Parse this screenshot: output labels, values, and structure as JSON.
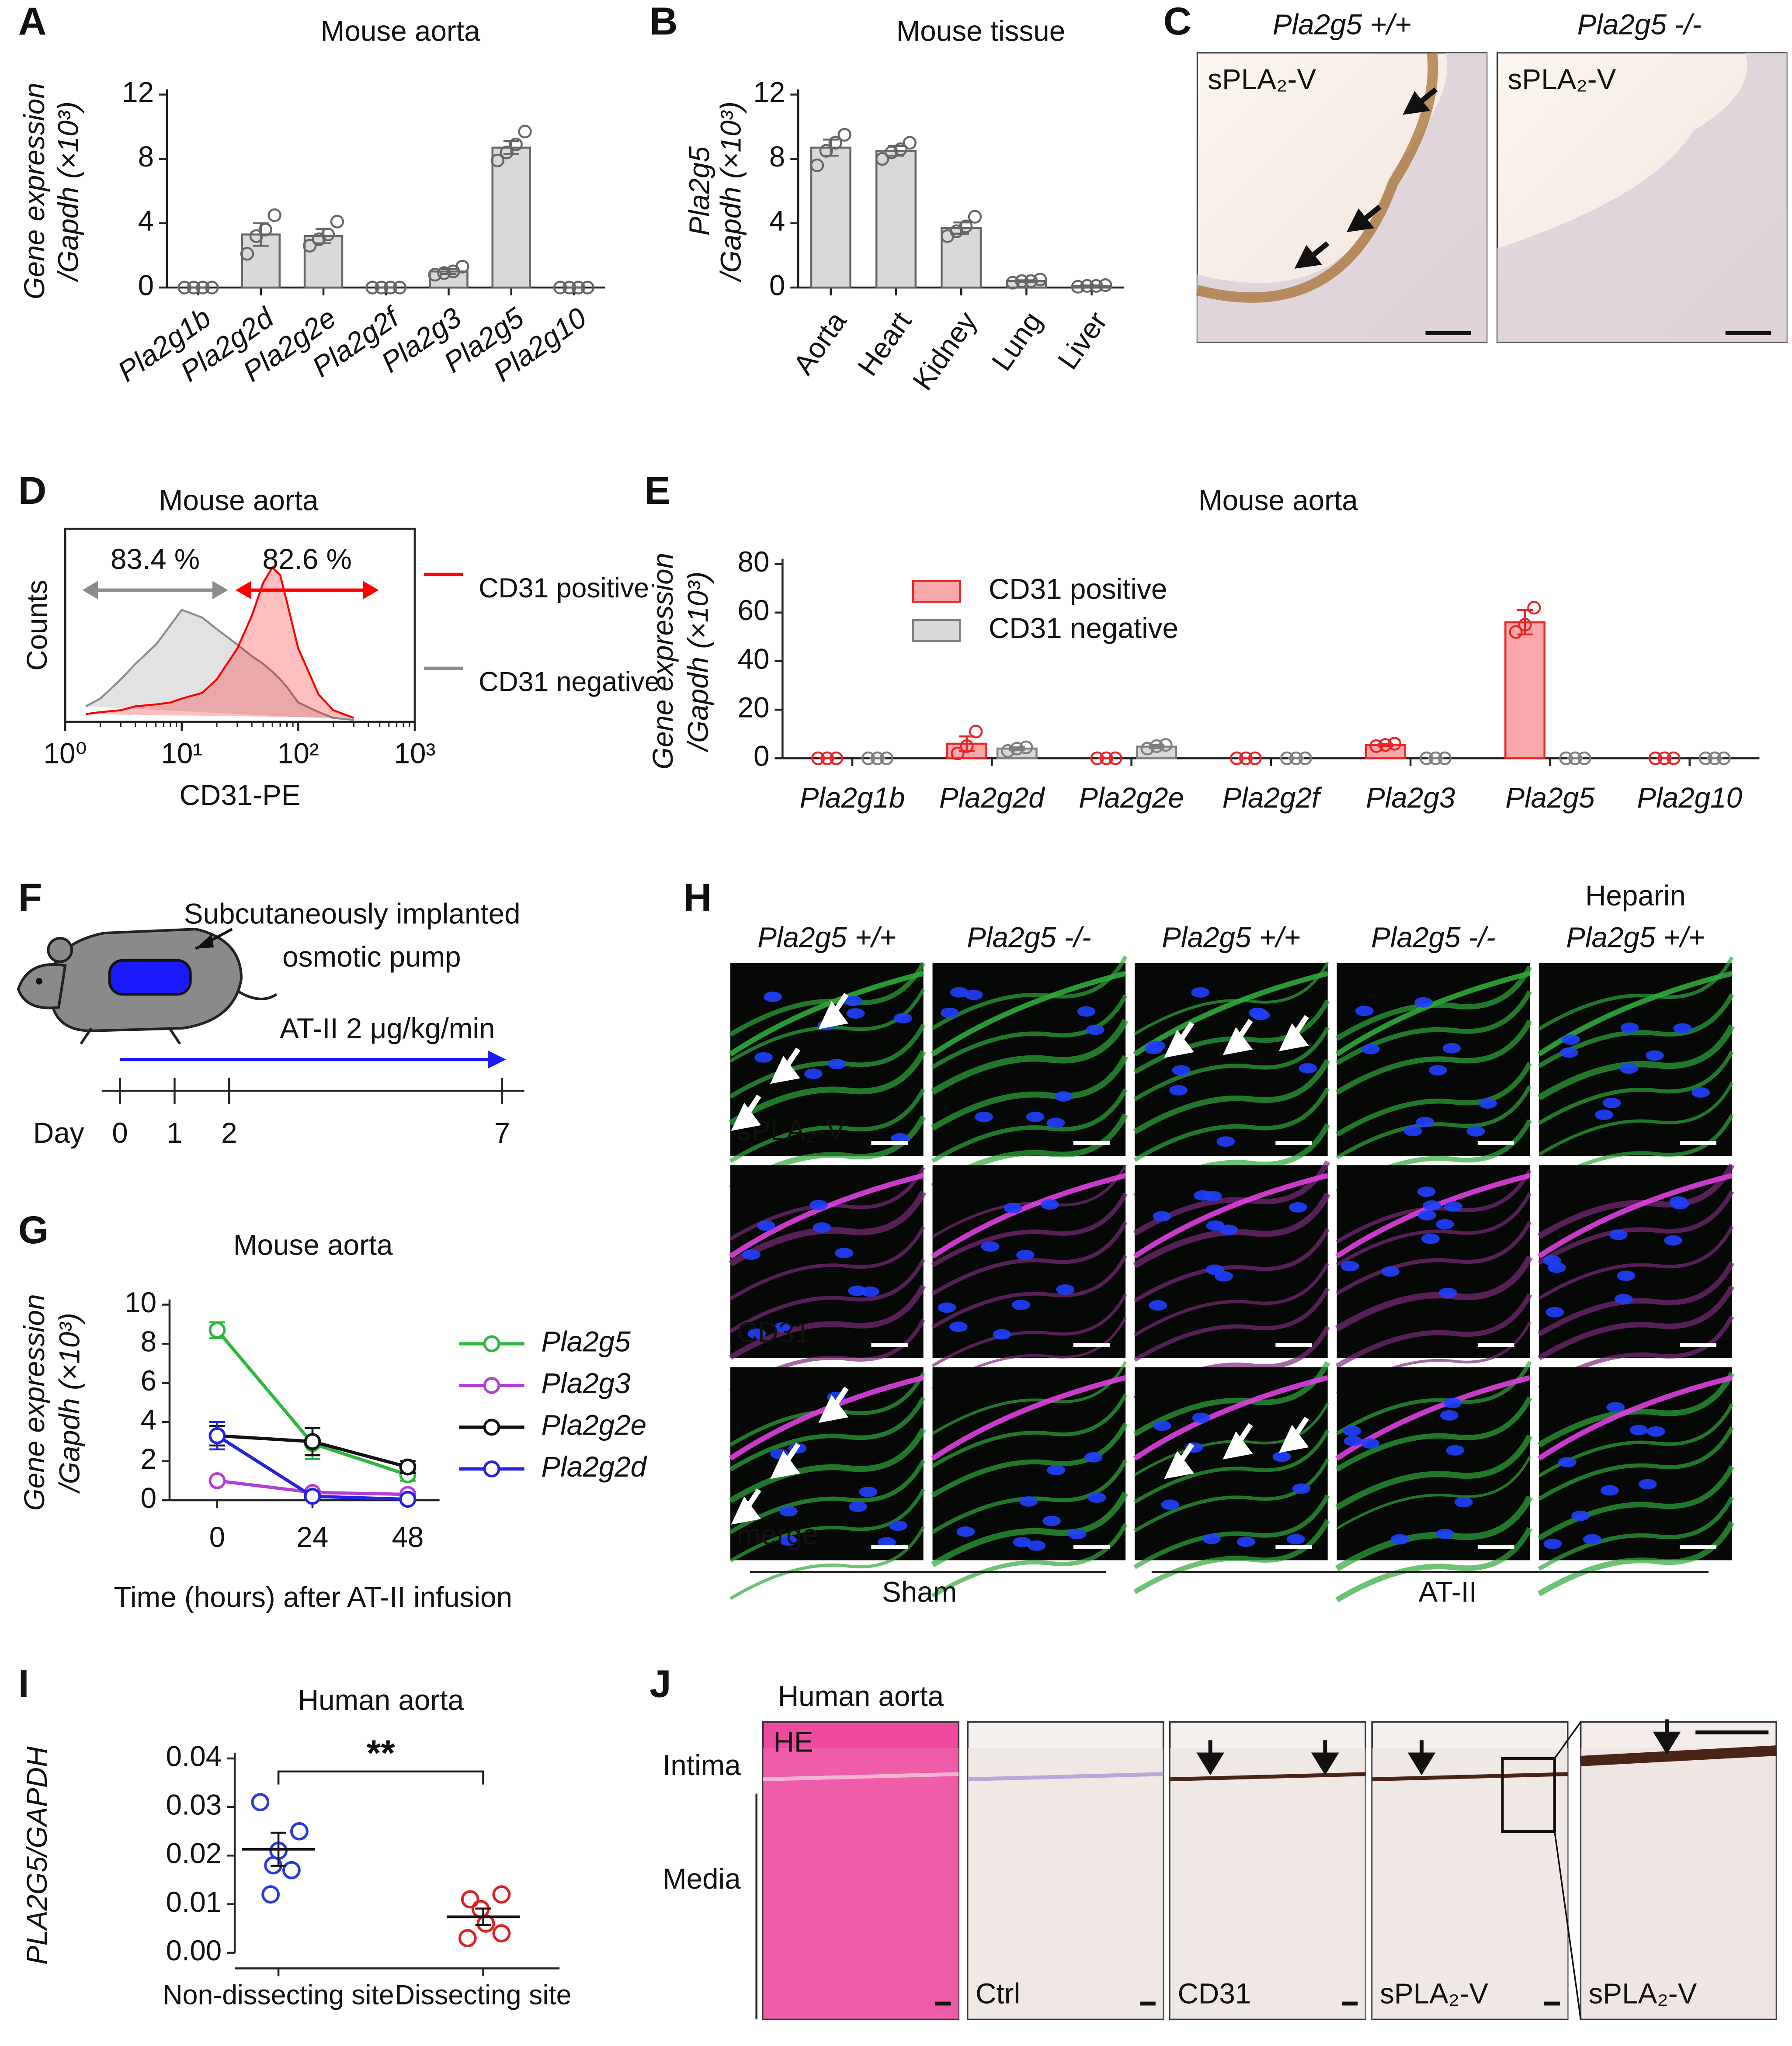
{
  "panel_labels": [
    "A",
    "B",
    "C",
    "D",
    "E",
    "F",
    "G",
    "H",
    "I",
    "J"
  ],
  "chart_data": [
    {
      "type": "bar",
      "title": "Mouse aorta",
      "ylabel": [
        "Gene expression",
        "/Gapdh (×10³)"
      ],
      "categories": [
        "Pla2g1b",
        "Pla2g2d",
        "Pla2g2e",
        "Pla2g2f",
        "Pla2g3",
        "Pla2g5",
        "Pla2g10"
      ],
      "values": [
        0,
        3.3,
        3.2,
        0,
        1.0,
        8.7,
        0
      ],
      "errors": [
        0,
        0.7,
        0.45,
        0,
        0.15,
        0.4,
        0
      ],
      "points": [
        [
          0,
          0,
          0,
          0
        ],
        [
          2.1,
          3.2,
          3.6,
          4.5
        ],
        [
          2.6,
          3.0,
          3.3,
          4.1
        ],
        [
          0,
          0,
          0,
          0
        ],
        [
          0.8,
          0.9,
          1.0,
          1.3
        ],
        [
          7.9,
          8.4,
          8.9,
          9.7
        ],
        [
          0,
          0,
          0,
          0
        ]
      ],
      "color": "#d9d9d9",
      "ylim": [
        0,
        12
      ],
      "yticks": [
        0,
        4,
        8,
        12
      ]
    },
    {
      "type": "bar",
      "title": "Mouse tissue",
      "ylabel": [
        "Pla2g5",
        "/Gapdh (×10³)"
      ],
      "categories": [
        "Aorta",
        "Heart",
        "Kidney",
        "Lung",
        "Liver"
      ],
      "values": [
        8.7,
        8.5,
        3.7,
        0.4,
        0.1
      ],
      "errors": [
        0.5,
        0.3,
        0.35,
        0.05,
        0.03
      ],
      "points": [
        [
          7.6,
          8.5,
          9.0,
          9.5
        ],
        [
          8.0,
          8.4,
          8.6,
          9.0
        ],
        [
          3.2,
          3.5,
          3.8,
          4.4
        ],
        [
          0.3,
          0.4,
          0.4,
          0.5
        ],
        [
          0.05,
          0.1,
          0.1,
          0.15
        ]
      ],
      "color": "#d9d9d9",
      "ylim": [
        0,
        12
      ],
      "yticks": [
        0,
        4,
        8,
        12
      ]
    },
    {
      "type": "histogram",
      "title": "Mouse aorta",
      "xlabel": "CD31-PE",
      "ylabel": "Counts",
      "xscale": "log",
      "xlim": [
        1,
        1000
      ],
      "xticks": [
        {
          "value": 1,
          "label": "10⁰"
        },
        {
          "value": 10,
          "label": "10¹"
        },
        {
          "value": 100,
          "label": "10²"
        },
        {
          "value": 1000,
          "label": "10³"
        }
      ],
      "ylim": [
        0,
        100
      ],
      "x": [
        1.5,
        2,
        3,
        4,
        6,
        8,
        10,
        15,
        20,
        30,
        40,
        50,
        60,
        70,
        80,
        100,
        150,
        200,
        300
      ],
      "series": [
        {
          "name": "CD31 positive",
          "color": "#ff0000",
          "values": [
            4,
            5,
            6,
            8,
            9,
            10,
            12,
            15,
            22,
            38,
            55,
            72,
            80,
            76,
            62,
            38,
            14,
            6,
            2
          ]
        },
        {
          "name": "CD31 negative",
          "color": "#8c8c8c",
          "values": [
            8,
            12,
            22,
            30,
            40,
            50,
            58,
            54,
            48,
            40,
            34,
            30,
            26,
            22,
            18,
            10,
            5,
            2,
            1
          ]
        }
      ],
      "gates": [
        {
          "text": "83.4 %",
          "from": 1.4,
          "to": 25,
          "color": "#8c8c8c"
        },
        {
          "text": "82.6 %",
          "from": 29,
          "to": 490,
          "color": "#ff0000"
        }
      ]
    },
    {
      "type": "bar",
      "title": "Mouse aorta",
      "ylabel": [
        "Gene expression",
        "/Gapdh (×10³)"
      ],
      "categories": [
        "Pla2g1b",
        "Pla2g2d",
        "Pla2g2e",
        "Pla2g2f",
        "Pla2g3",
        "Pla2g5",
        "Pla2g10"
      ],
      "series": [
        {
          "name": "CD31 positive",
          "color": "#f8a8a8",
          "edgecolor": "#e8262a",
          "values": [
            0,
            6,
            0,
            0,
            5.5,
            56,
            0
          ],
          "errors": [
            0,
            3,
            0,
            0,
            0.4,
            5,
            0
          ],
          "points": [
            [
              0,
              0,
              0
            ],
            [
              2,
              5,
              11
            ],
            [
              0,
              0,
              0
            ],
            [
              0,
              0,
              0
            ],
            [
              5,
              5.5,
              6
            ],
            [
              52,
              55,
              62
            ],
            [
              0,
              0,
              0
            ]
          ]
        },
        {
          "name": "CD31 negative",
          "color": "#d9d9d9",
          "edgecolor": "#7f7f7f",
          "values": [
            0,
            4,
            4.8,
            0,
            0,
            0,
            0
          ],
          "errors": [
            0,
            0.5,
            0.6,
            0,
            0,
            0,
            0
          ],
          "points": [
            [
              0,
              0,
              0
            ],
            [
              3,
              4,
              4.5
            ],
            [
              4,
              5,
              5.5
            ],
            [
              0,
              0,
              0
            ],
            [
              0,
              0,
              0
            ],
            [
              0,
              0,
              0
            ],
            [
              0,
              0,
              0
            ]
          ]
        }
      ],
      "ylim": [
        0,
        80
      ],
      "yticks": [
        0,
        20,
        40,
        60,
        80
      ]
    },
    {
      "type": "line",
      "title": "Mouse aorta",
      "ylabel": [
        "Gene expression",
        "/Gapdh (×10³)"
      ],
      "xlabel": "Time (hours) after AT-II infusion",
      "x": [
        0,
        24,
        48
      ],
      "xlim": [
        -12,
        56
      ],
      "xticks": [
        0,
        24,
        48
      ],
      "ylim": [
        0,
        10
      ],
      "yticks": [
        0,
        2,
        4,
        6,
        8,
        10
      ],
      "series": [
        {
          "name": "Pla2g5",
          "color": "#2db83d",
          "values": [
            8.7,
            2.9,
            1.3
          ],
          "errors": [
            0.4,
            0.8,
            0.3
          ]
        },
        {
          "name": "Pla2g3",
          "color": "#b43fd6",
          "values": [
            1.0,
            0.4,
            0.3
          ],
          "errors": [
            0.1,
            0.1,
            0.05
          ]
        },
        {
          "name": "Pla2g2e",
          "color": "#111111",
          "values": [
            3.3,
            3.0,
            1.7
          ],
          "errors": [
            0.5,
            0.7,
            0.3
          ]
        },
        {
          "name": "Pla2g2d",
          "color": "#2323e0",
          "values": [
            3.3,
            0.2,
            0.05
          ],
          "errors": [
            0.7,
            0.1,
            0.05
          ]
        }
      ]
    },
    {
      "type": "dot",
      "title": "Human aorta",
      "ylabel": "PLA2G5/GAPDH",
      "categories": [
        "Non-dissecting site",
        "Dissecting site"
      ],
      "colors": [
        "#2a3bdc",
        "#e02020"
      ],
      "points": [
        [
          0.031,
          0.025,
          0.021,
          0.018,
          0.017,
          0.012
        ],
        [
          0.012,
          0.011,
          0.009,
          0.006,
          0.004,
          0.003
        ]
      ],
      "values": [
        0.0213,
        0.0074
      ],
      "errors": [
        0.0034,
        0.0017
      ],
      "annotation": "**",
      "ylim": [
        0,
        0.04
      ],
      "yticks": [
        {
          "value": 0,
          "label": "0.00"
        },
        0.01,
        0.02,
        0.03,
        0.04
      ]
    }
  ],
  "panel_c": {
    "genotypes": [
      "Pla2g5 +/+",
      "Pla2g5 -/-"
    ],
    "stain": "sPLA₂-V"
  },
  "panel_f": {
    "pump_label": [
      "Subcutaneously implanted",
      "osmotic pump"
    ],
    "treatment": "AT-II 2 μg/kg/min",
    "axis_label": "Day",
    "days": [
      0,
      1,
      2,
      7
    ]
  },
  "panel_h": {
    "heparin": "Heparin",
    "genotypes": [
      "Pla2g5 +/+",
      "Pla2g5 -/-",
      "Pla2g5 +/+",
      "Pla2g5 -/-",
      "Pla2g5 +/+"
    ],
    "channels": [
      "sPLA₂-V",
      "CD31",
      "merge"
    ],
    "groups": [
      "Sham",
      "AT-II"
    ]
  },
  "panel_j": {
    "title": "Human aorta",
    "layers": [
      "Intima",
      "Media"
    ],
    "stains": [
      "HE",
      "Ctrl",
      "CD31",
      "sPLA₂-V",
      "sPLA₂-V"
    ]
  }
}
